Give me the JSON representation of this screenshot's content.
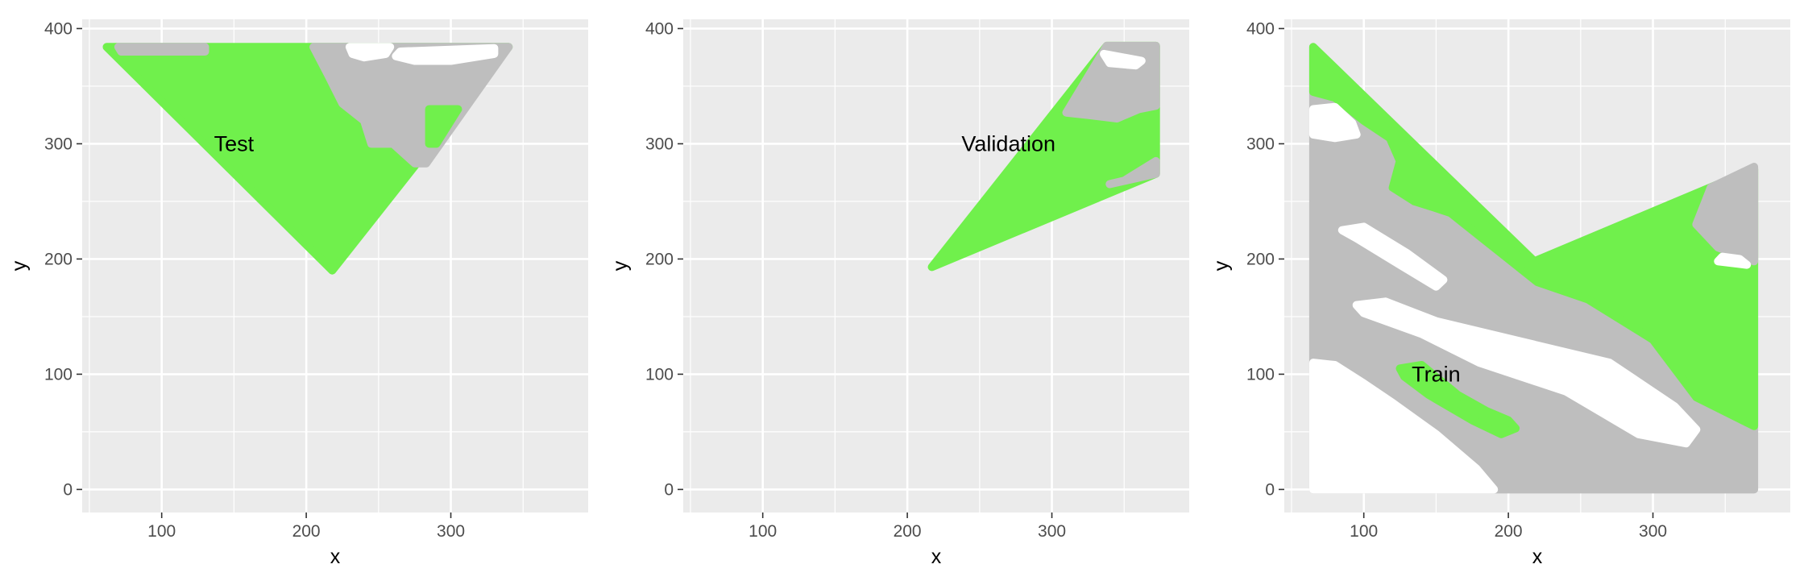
{
  "chart_data": [
    {
      "type": "area",
      "panel_label": "Test",
      "label_at": [
        150,
        300
      ],
      "xlabel": "x",
      "ylabel": "y",
      "xlim": [
        45,
        395
      ],
      "ylim": [
        -20,
        408
      ],
      "x_ticks": [
        100,
        200,
        300
      ],
      "y_ticks": [
        0,
        100,
        200,
        300,
        400
      ],
      "grid": true,
      "colors": {
        "panel": "#EBEBEB",
        "green": "#70F04C",
        "gray": "#BEBEBE",
        "white": "#FFFFFF"
      },
      "regions": [
        {
          "fill": "green",
          "points": [
            [
              62,
              384
            ],
            [
              340,
              384
            ],
            [
              218,
              190
            ]
          ]
        },
        {
          "fill": "gray",
          "points": [
            [
              70,
              384
            ],
            [
              130,
              384
            ],
            [
              130,
              380
            ],
            [
              72,
              380
            ]
          ]
        },
        {
          "fill": "gray",
          "points": [
            [
              205,
              384
            ],
            [
              340,
              384
            ],
            [
              283,
              283
            ],
            [
              275,
              283
            ],
            [
              260,
              300
            ],
            [
              245,
              300
            ],
            [
              240,
              320
            ],
            [
              225,
              335
            ],
            [
              215,
              360
            ]
          ]
        },
        {
          "fill": "green",
          "points": [
            [
              285,
              330
            ],
            [
              305,
              330
            ],
            [
              290,
              300
            ],
            [
              285,
              300
            ]
          ]
        },
        {
          "fill": "white",
          "points": [
            [
              230,
              384
            ],
            [
              258,
              384
            ],
            [
              255,
              378
            ],
            [
              240,
              375
            ],
            [
              232,
              378
            ]
          ]
        },
        {
          "fill": "white",
          "points": [
            [
              265,
              380
            ],
            [
              330,
              383
            ],
            [
              330,
              378
            ],
            [
              300,
              372
            ],
            [
              275,
              372
            ],
            [
              262,
              376
            ]
          ]
        }
      ]
    },
    {
      "type": "area",
      "panel_label": "Validation",
      "label_at": [
        270,
        300
      ],
      "xlabel": "x",
      "ylabel": "y",
      "xlim": [
        45,
        395
      ],
      "ylim": [
        -20,
        408
      ],
      "x_ticks": [
        100,
        200,
        300
      ],
      "y_ticks": [
        0,
        100,
        200,
        300,
        400
      ],
      "grid": true,
      "colors": {
        "panel": "#EBEBEB",
        "green": "#70F04C",
        "gray": "#BEBEBE",
        "white": "#FFFFFF"
      },
      "regions": [
        {
          "fill": "green",
          "points": [
            [
              217,
              193
            ],
            [
              338,
              385
            ],
            [
              372,
              385
            ],
            [
              372,
              274
            ]
          ]
        },
        {
          "fill": "gray",
          "points": [
            [
              338,
              385
            ],
            [
              372,
              385
            ],
            [
              372,
              333
            ],
            [
              360,
              330
            ],
            [
              345,
              322
            ],
            [
              325,
              325
            ],
            [
              310,
              327
            ]
          ]
        },
        {
          "fill": "gray",
          "points": [
            [
              340,
              265
            ],
            [
              372,
              274
            ],
            [
              372,
              285
            ],
            [
              350,
              268
            ]
          ]
        },
        {
          "fill": "white",
          "points": [
            [
              336,
              378
            ],
            [
              362,
              372
            ],
            [
              358,
              368
            ],
            [
              340,
              370
            ]
          ]
        }
      ]
    },
    {
      "type": "area",
      "panel_label": "Train",
      "label_at": [
        150,
        100
      ],
      "xlabel": "x",
      "ylabel": "y",
      "xlim": [
        45,
        395
      ],
      "ylim": [
        -20,
        408
      ],
      "x_ticks": [
        100,
        200,
        300
      ],
      "y_ticks": [
        0,
        100,
        200,
        300,
        400
      ],
      "grid": true,
      "colors": {
        "panel": "#EBEBEB",
        "green": "#70F04C",
        "gray": "#BEBEBE",
        "white": "#FFFFFF"
      },
      "regions": [
        {
          "fill": "gray",
          "points": [
            [
              65,
              384
            ],
            [
              218,
              198
            ],
            [
              370,
              278
            ],
            [
              370,
              0
            ],
            [
              65,
              0
            ]
          ]
        },
        {
          "fill": "green",
          "points": [
            [
              65,
              384
            ],
            [
              218,
              198
            ],
            [
              370,
              278
            ],
            [
              370,
              55
            ],
            [
              330,
              80
            ],
            [
              300,
              130
            ],
            [
              255,
              165
            ],
            [
              220,
              180
            ],
            [
              200,
              200
            ],
            [
              180,
              220
            ],
            [
              160,
              240
            ],
            [
              148,
              245
            ],
            [
              135,
              250
            ],
            [
              120,
              262
            ],
            [
              125,
              285
            ],
            [
              118,
              305
            ],
            [
              100,
              320
            ],
            [
              80,
              340
            ],
            [
              65,
              345
            ]
          ]
        },
        {
          "fill": "gray",
          "points": [
            [
              330,
              230
            ],
            [
              340,
              262
            ],
            [
              370,
              280
            ],
            [
              370,
              198
            ],
            [
              345,
              210
            ]
          ]
        },
        {
          "fill": "white",
          "points": [
            [
              65,
              330
            ],
            [
              80,
              332
            ],
            [
              92,
              318
            ],
            [
              95,
              308
            ],
            [
              80,
              305
            ],
            [
              65,
              308
            ]
          ]
        },
        {
          "fill": "white",
          "points": [
            [
              85,
              225
            ],
            [
              100,
              228
            ],
            [
              130,
              205
            ],
            [
              155,
              182
            ],
            [
              150,
              176
            ],
            [
              125,
              195
            ],
            [
              95,
              218
            ]
          ]
        },
        {
          "fill": "white",
          "points": [
            [
              95,
              160
            ],
            [
              115,
              163
            ],
            [
              150,
              146
            ],
            [
              210,
              128
            ],
            [
              270,
              110
            ],
            [
              315,
              72
            ],
            [
              330,
              52
            ],
            [
              323,
              40
            ],
            [
              290,
              48
            ],
            [
              240,
              85
            ],
            [
              180,
              110
            ],
            [
              140,
              135
            ],
            [
              100,
              153
            ]
          ]
        },
        {
          "fill": "green",
          "points": [
            [
              125,
              105
            ],
            [
              140,
              108
            ],
            [
              165,
              82
            ],
            [
              185,
              68
            ],
            [
              200,
              60
            ],
            [
              205,
              53
            ],
            [
              195,
              48
            ],
            [
              175,
              60
            ],
            [
              145,
              82
            ],
            [
              128,
              98
            ]
          ]
        },
        {
          "fill": "white",
          "points": [
            [
              65,
              110
            ],
            [
              80,
              108
            ],
            [
              100,
              92
            ],
            [
              120,
              75
            ],
            [
              150,
              48
            ],
            [
              178,
              18
            ],
            [
              190,
              0
            ],
            [
              65,
              0
            ]
          ]
        },
        {
          "fill": "white",
          "points": [
            [
              345,
              198
            ],
            [
              365,
              195
            ],
            [
              360,
              200
            ],
            [
              348,
              202
            ]
          ]
        }
      ]
    }
  ]
}
